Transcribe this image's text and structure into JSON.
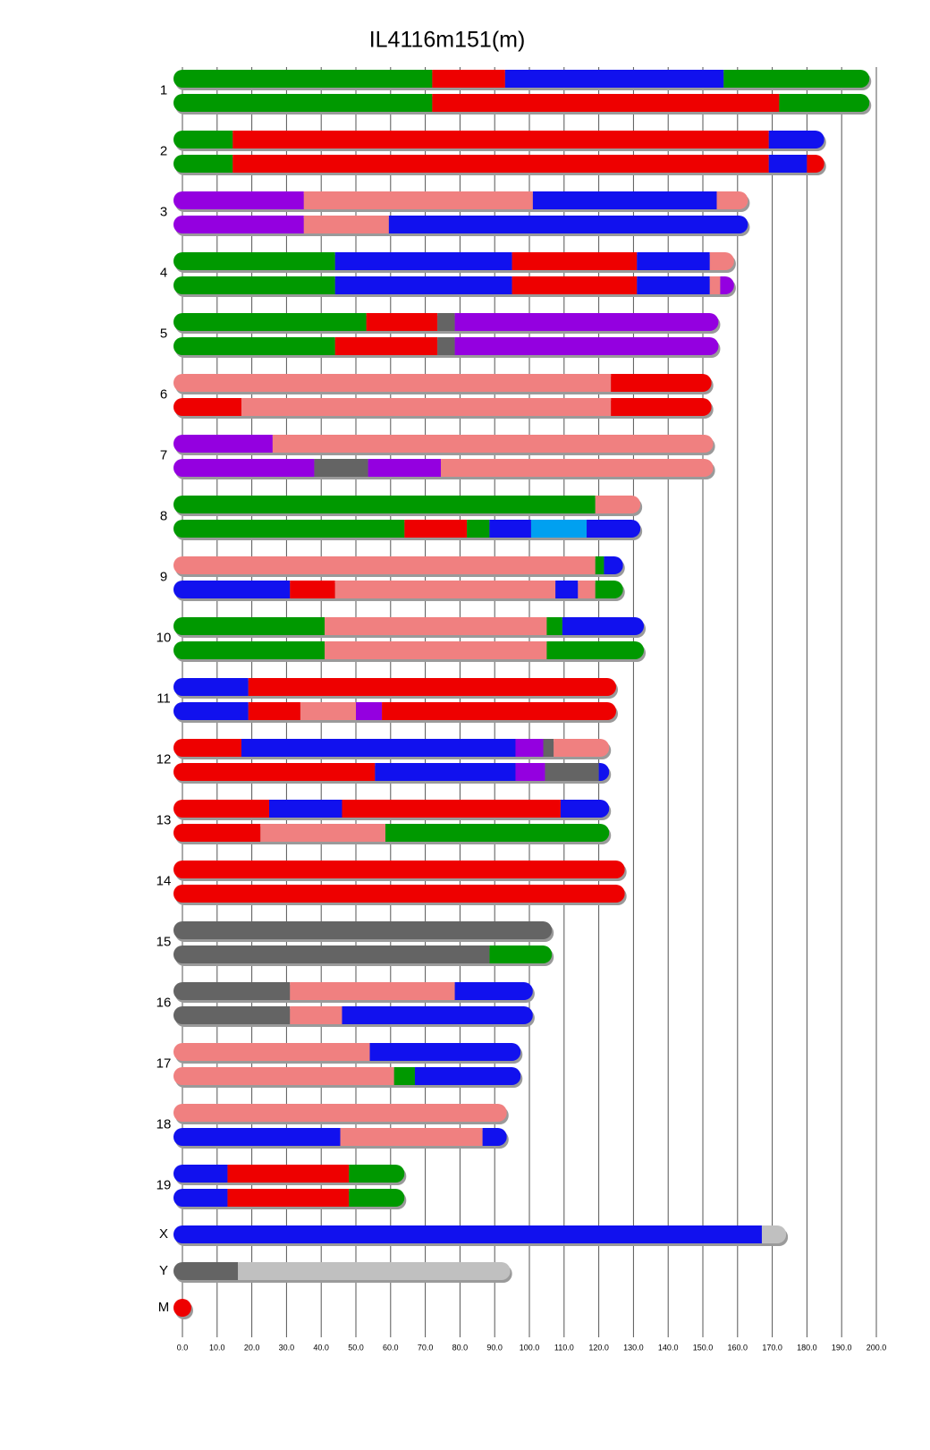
{
  "chart_data": {
    "type": "chromosome",
    "title": "IL4116m151(m)",
    "xlim": [
      0,
      200
    ],
    "xticks": [
      {
        "value": 0,
        "label": "0.0"
      },
      {
        "value": 10,
        "label": "10.0"
      },
      {
        "value": 20,
        "label": "20.0"
      },
      {
        "value": 30,
        "label": "30.0"
      },
      {
        "value": 40,
        "label": "40.0"
      },
      {
        "value": 50,
        "label": "50.0"
      },
      {
        "value": 60,
        "label": "60.0"
      },
      {
        "value": 70,
        "label": "70.0"
      },
      {
        "value": 80,
        "label": "80.0"
      },
      {
        "value": 90,
        "label": "90.0"
      },
      {
        "value": 100,
        "label": "100.0"
      },
      {
        "value": 110,
        "label": "110.0"
      },
      {
        "value": 120,
        "label": "120.0"
      },
      {
        "value": 130,
        "label": "130.0"
      },
      {
        "value": 140,
        "label": "140.0"
      },
      {
        "value": 150,
        "label": "150.0"
      },
      {
        "value": 160,
        "label": "160.0"
      },
      {
        "value": 170,
        "label": "170.0"
      },
      {
        "value": 180,
        "label": "180.0"
      },
      {
        "value": 190,
        "label": "190.0"
      },
      {
        "value": 200,
        "label": "200.0"
      }
    ],
    "grid": true,
    "chromosomes": [
      {
        "label": "1",
        "haplotypes": [
          {
            "values": [
              72,
              21,
              63,
              42
            ],
            "colors": [
              "#009900",
              "#ee0000",
              "#1111ee",
              "#009900"
            ]
          },
          {
            "values": [
              72,
              100,
              26
            ],
            "colors": [
              "#009900",
              "#ee0000",
              "#009900"
            ]
          }
        ]
      },
      {
        "label": "2",
        "haplotypes": [
          {
            "values": [
              14.5,
              154.5,
              16
            ],
            "colors": [
              "#009900",
              "#ee0000",
              "#1111ee"
            ]
          },
          {
            "values": [
              14.5,
              154.5,
              11,
              5
            ],
            "colors": [
              "#009900",
              "#ee0000",
              "#1111ee",
              "#ee0000"
            ]
          }
        ]
      },
      {
        "label": "3",
        "haplotypes": [
          {
            "values": [
              35,
              66,
              53,
              9
            ],
            "colors": [
              "#9400e0",
              "#f08080",
              "#1111ee",
              "#f08080"
            ]
          },
          {
            "values": [
              35,
              24.5,
              103.5
            ],
            "colors": [
              "#9400e0",
              "#f08080",
              "#1111ee"
            ]
          }
        ]
      },
      {
        "label": "4",
        "haplotypes": [
          {
            "values": [
              44,
              51,
              36,
              21,
              7
            ],
            "colors": [
              "#009900",
              "#1111ee",
              "#ee0000",
              "#1111ee",
              "#f08080"
            ]
          },
          {
            "values": [
              44,
              51,
              36,
              21,
              3,
              4
            ],
            "colors": [
              "#009900",
              "#1111ee",
              "#ee0000",
              "#1111ee",
              "#f08080",
              "#9400e0"
            ]
          }
        ]
      },
      {
        "label": "5",
        "haplotypes": [
          {
            "values": [
              53,
              20.5,
              5,
              76
            ],
            "colors": [
              "#009900",
              "#ee0000",
              "#646464",
              "#9400e0"
            ]
          },
          {
            "values": [
              44,
              29.5,
              5,
              76
            ],
            "colors": [
              "#009900",
              "#ee0000",
              "#646464",
              "#9400e0"
            ]
          }
        ]
      },
      {
        "label": "6",
        "haplotypes": [
          {
            "values": [
              123.5,
              29
            ],
            "colors": [
              "#f08080",
              "#ee0000"
            ]
          },
          {
            "values": [
              17,
              106.5,
              29
            ],
            "colors": [
              "#ee0000",
              "#f08080",
              "#ee0000"
            ]
          }
        ]
      },
      {
        "label": "7",
        "haplotypes": [
          {
            "values": [
              26,
              127
            ],
            "colors": [
              "#9400e0",
              "#f08080"
            ]
          },
          {
            "values": [
              38,
              15.5,
              21,
              78.5
            ],
            "colors": [
              "#9400e0",
              "#646464",
              "#9400e0",
              "#f08080"
            ]
          }
        ]
      },
      {
        "label": "8",
        "haplotypes": [
          {
            "values": [
              119,
              13
            ],
            "colors": [
              "#009900",
              "#f08080"
            ]
          },
          {
            "values": [
              64,
              18,
              6.5,
              12,
              16,
              15.5
            ],
            "colors": [
              "#009900",
              "#ee0000",
              "#009900",
              "#1111ee",
              "#00a0f0",
              "#1111ee"
            ]
          }
        ]
      },
      {
        "label": "9",
        "haplotypes": [
          {
            "values": [
              119,
              2.5,
              5.5
            ],
            "colors": [
              "#f08080",
              "#009900",
              "#1111ee"
            ]
          },
          {
            "values": [
              31,
              13,
              63.5,
              6.5,
              5,
              8
            ],
            "colors": [
              "#1111ee",
              "#ee0000",
              "#f08080",
              "#1111ee",
              "#f08080",
              "#009900"
            ]
          }
        ]
      },
      {
        "label": "10",
        "haplotypes": [
          {
            "values": [
              41,
              64,
              4.5,
              23.5
            ],
            "colors": [
              "#009900",
              "#f08080",
              "#009900",
              "#1111ee"
            ]
          },
          {
            "values": [
              41,
              64,
              28
            ],
            "colors": [
              "#009900",
              "#f08080",
              "#009900"
            ]
          }
        ]
      },
      {
        "label": "11",
        "haplotypes": [
          {
            "values": [
              19,
              106
            ],
            "colors": [
              "#1111ee",
              "#ee0000"
            ]
          },
          {
            "values": [
              19,
              15,
              16,
              7.5,
              67.5
            ],
            "colors": [
              "#1111ee",
              "#ee0000",
              "#f08080",
              "#9400e0",
              "#ee0000"
            ]
          }
        ]
      },
      {
        "label": "12",
        "haplotypes": [
          {
            "values": [
              17,
              79,
              8,
              3,
              16
            ],
            "colors": [
              "#ee0000",
              "#1111ee",
              "#9400e0",
              "#646464",
              "#f08080"
            ]
          },
          {
            "values": [
              55.5,
              40.5,
              8.5,
              15.5,
              3
            ],
            "colors": [
              "#ee0000",
              "#1111ee",
              "#9400e0",
              "#646464",
              "#1111ee"
            ]
          }
        ]
      },
      {
        "label": "13",
        "haplotypes": [
          {
            "values": [
              25,
              21,
              63,
              14
            ],
            "colors": [
              "#ee0000",
              "#1111ee",
              "#ee0000",
              "#1111ee"
            ]
          },
          {
            "values": [
              22.5,
              36,
              64.5
            ],
            "colors": [
              "#ee0000",
              "#f08080",
              "#009900"
            ]
          }
        ]
      },
      {
        "label": "14",
        "haplotypes": [
          {
            "values": [
              127.5
            ],
            "colors": [
              "#ee0000"
            ]
          },
          {
            "values": [
              127.5
            ],
            "colors": [
              "#ee0000"
            ]
          }
        ]
      },
      {
        "label": "15",
        "haplotypes": [
          {
            "values": [
              106.5
            ],
            "colors": [
              "#646464"
            ]
          },
          {
            "values": [
              88.5,
              18
            ],
            "colors": [
              "#646464",
              "#009900"
            ]
          }
        ]
      },
      {
        "label": "16",
        "haplotypes": [
          {
            "values": [
              31,
              47.5,
              22.5
            ],
            "colors": [
              "#646464",
              "#f08080",
              "#1111ee"
            ]
          },
          {
            "values": [
              31,
              15,
              55
            ],
            "colors": [
              "#646464",
              "#f08080",
              "#1111ee"
            ]
          }
        ]
      },
      {
        "label": "17",
        "haplotypes": [
          {
            "values": [
              54,
              43.5
            ],
            "colors": [
              "#f08080",
              "#1111ee"
            ]
          },
          {
            "values": [
              61,
              6,
              30.5
            ],
            "colors": [
              "#f08080",
              "#009900",
              "#1111ee"
            ]
          }
        ]
      },
      {
        "label": "18",
        "haplotypes": [
          {
            "values": [
              93.5
            ],
            "colors": [
              "#f08080"
            ]
          },
          {
            "values": [
              45.5,
              41,
              7
            ],
            "colors": [
              "#1111ee",
              "#f08080",
              "#1111ee"
            ]
          }
        ]
      },
      {
        "label": "19",
        "haplotypes": [
          {
            "values": [
              13,
              35,
              16
            ],
            "colors": [
              "#1111ee",
              "#ee0000",
              "#009900"
            ]
          },
          {
            "values": [
              13,
              35,
              16
            ],
            "colors": [
              "#1111ee",
              "#ee0000",
              "#009900"
            ]
          }
        ]
      },
      {
        "label": "X",
        "haplotypes": [
          {
            "values": [
              167,
              7
            ],
            "colors": [
              "#1111ee",
              "#c0c0c0"
            ]
          }
        ]
      },
      {
        "label": "Y",
        "haplotypes": [
          {
            "values": [
              16,
              78.5
            ],
            "colors": [
              "#646464",
              "#c0c0c0"
            ]
          }
        ]
      },
      {
        "label": "M",
        "haplotypes": [
          {
            "values": [
              0.5
            ],
            "colors": [
              "#ee0000"
            ]
          }
        ]
      }
    ]
  }
}
